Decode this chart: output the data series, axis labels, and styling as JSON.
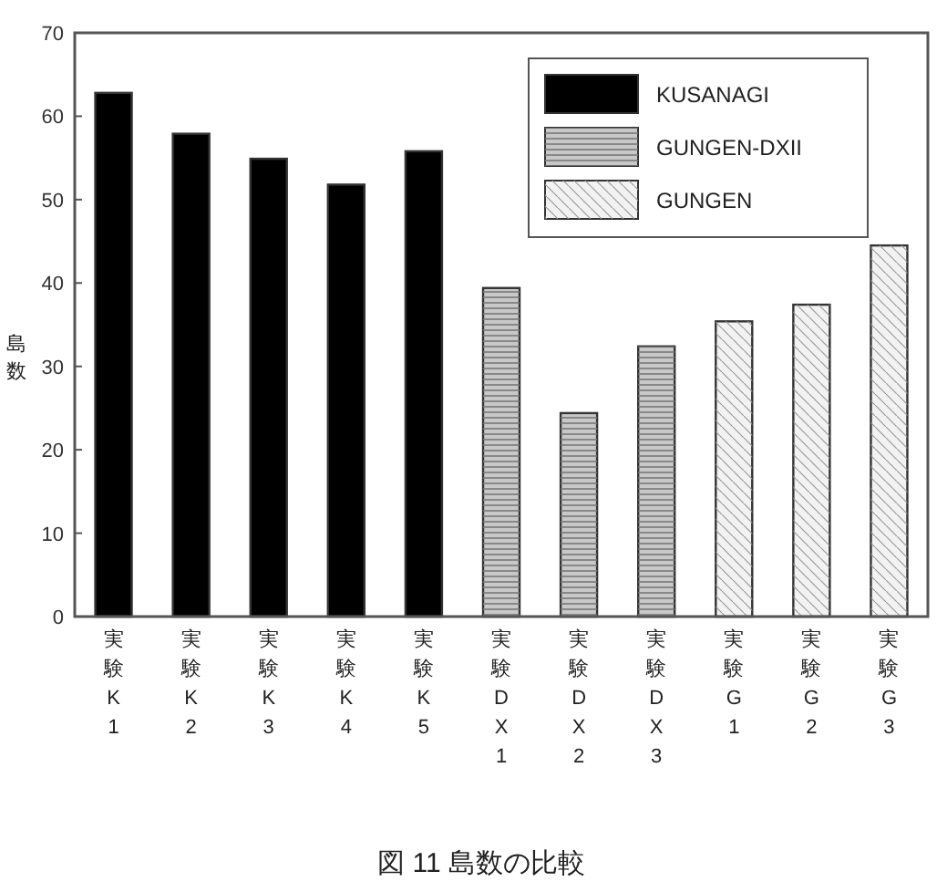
{
  "chart_data": {
    "type": "bar",
    "ylabel": "島数",
    "categories": [
      "実験K1",
      "実験K2",
      "実験K3",
      "実験K4",
      "実験K5",
      "実験DX1",
      "実験DX2",
      "実験DX3",
      "実験G1",
      "実験G2",
      "実験G3"
    ],
    "series": [
      {
        "name": "KUSANAGI",
        "color": "#000000",
        "values": [
          62.8,
          57.9,
          54.9,
          51.8,
          55.8,
          null,
          null,
          null,
          null,
          null,
          null
        ]
      },
      {
        "name": "GUNGEN-DXII",
        "color": "#c8c8c8",
        "values": [
          null,
          null,
          null,
          null,
          null,
          39.4,
          24.4,
          32.4,
          null,
          null,
          null
        ]
      },
      {
        "name": "GUNGEN",
        "color": "#f2f2f2",
        "values": [
          null,
          null,
          null,
          null,
          null,
          null,
          null,
          null,
          35.4,
          37.4,
          44.5
        ]
      }
    ],
    "ylim": [
      0,
      70
    ],
    "yticks": [
      0,
      10,
      20,
      30,
      40,
      50,
      60,
      70
    ],
    "legend": "top right",
    "annotations": [
      "図 11 島数の比較"
    ]
  }
}
